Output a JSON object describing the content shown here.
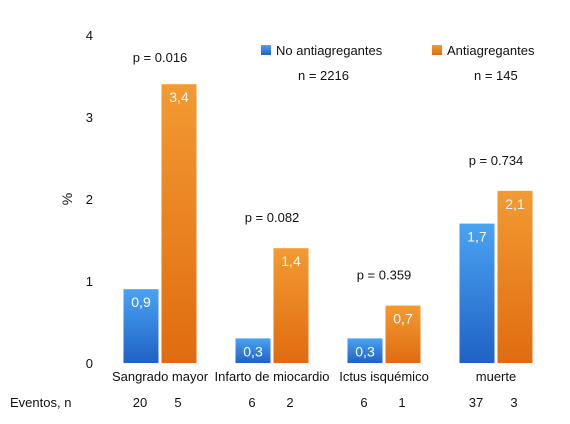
{
  "chart_data": {
    "type": "bar",
    "categories": [
      "Sangrado mayor",
      "Infarto de miocardio",
      "Ictus isquémico",
      "muerte"
    ],
    "series": [
      {
        "name": "No antiagregantes",
        "values": [
          0.9,
          0.3,
          0.3,
          1.7
        ],
        "labels": [
          "0,9",
          "0,3",
          "0,3",
          "1,7"
        ],
        "color": "#2f7fd6",
        "n_label": "n = 2216"
      },
      {
        "name": "Antiagregantes",
        "values": [
          3.4,
          1.4,
          0.7,
          2.1
        ],
        "labels": [
          "3,4",
          "1,4",
          "0,7",
          "2,1"
        ],
        "color": "#e87a17",
        "n_label": "n = 145"
      }
    ],
    "p_values": [
      "p = 0.016",
      "p = 0.082",
      "p = 0.359",
      "p = 0.734"
    ],
    "ylabel": "%",
    "ylim": [
      0,
      4
    ],
    "yticks": [
      "0",
      "1",
      "2",
      "3",
      "4"
    ],
    "events_label": "Eventos, n",
    "events": [
      [
        "20",
        "5"
      ],
      [
        "6",
        "2"
      ],
      [
        "6",
        "1"
      ],
      [
        "37",
        "3"
      ]
    ],
    "grid": false,
    "legend_position": "top-right"
  }
}
